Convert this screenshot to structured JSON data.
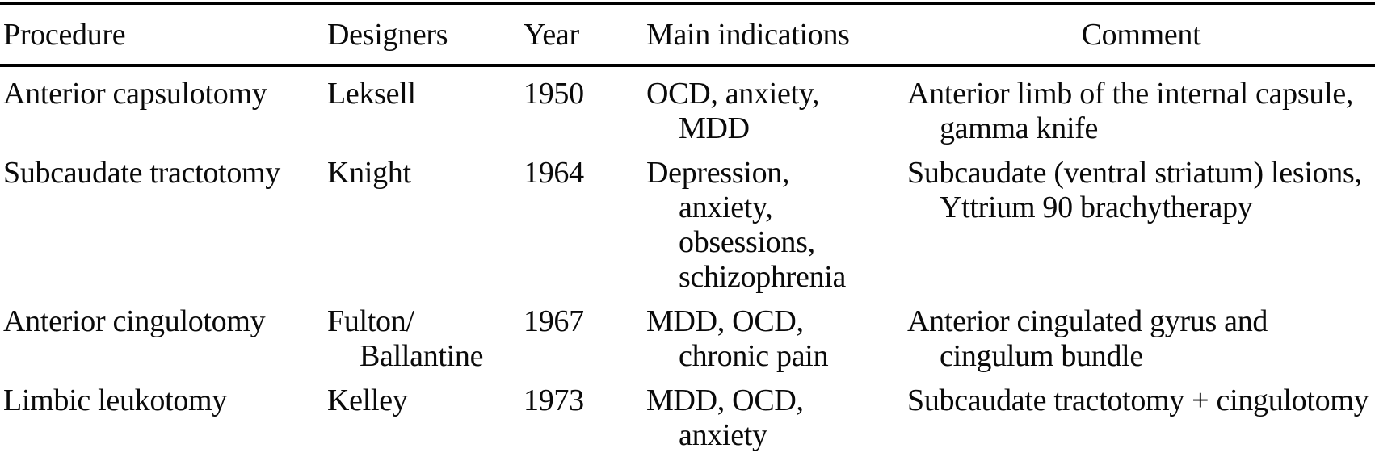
{
  "document": {
    "kind": "scanned-paper-table",
    "background_color": "#ffffff",
    "text_color": "#0a0a0a",
    "rule_color": "#000000"
  },
  "table": {
    "headers": [
      "Procedure",
      "Designers",
      "Year",
      "Main indications",
      "Comment"
    ],
    "rows": [
      {
        "procedure": "Anterior capsulotomy",
        "designers": "Leksell",
        "year": "1950",
        "main_indications": "OCD, anxiety,\nMDD",
        "comment": "Anterior limb of the internal capsule,\ngamma knife"
      },
      {
        "procedure": "Subcaudate tractotomy",
        "designers": "Knight",
        "year": "1964",
        "main_indications": "Depression,\nanxiety,\nobsessions,\nschizophrenia",
        "comment": "Subcaudate (ventral striatum) lesions,\nYttrium 90 brachytherapy"
      },
      {
        "procedure": "Anterior cingulotomy",
        "designers": "Fulton/\nBallantine",
        "year": "1967",
        "main_indications": "MDD, OCD,\nchronic pain",
        "comment": "Anterior cingulated gyrus and\ncingulum bundle"
      },
      {
        "procedure": "Limbic leukotomy",
        "designers": "Kelley",
        "year": "1973",
        "main_indications": "MDD, OCD,\nanxiety",
        "comment": "Subcaudate tractotomy + cingulotomy"
      }
    ]
  }
}
